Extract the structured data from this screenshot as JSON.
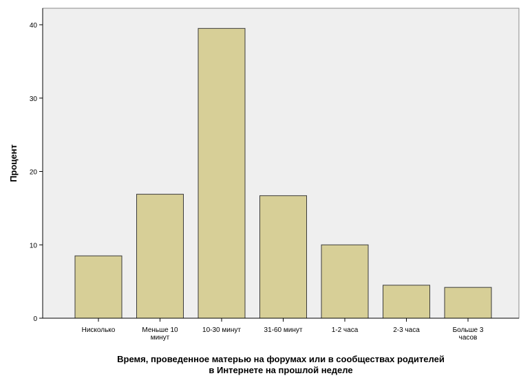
{
  "chart_data": {
    "type": "bar",
    "categories": [
      [
        "Нисколько"
      ],
      [
        "Меньше 10",
        "минут"
      ],
      [
        "10-30 минут"
      ],
      [
        "31-60 минут"
      ],
      [
        "1-2 часа"
      ],
      [
        "2-3 часа"
      ],
      [
        "Больше 3",
        "часов"
      ]
    ],
    "values": [
      8.5,
      16.9,
      39.5,
      16.7,
      10.0,
      4.5,
      4.2
    ],
    "ylabel": "Процент",
    "xlabel_lines": [
      "Время, проведенное матерью на форумах или в сообществах родителей",
      "в Интернете на прошлой неделе"
    ],
    "ylim": [
      0,
      44
    ],
    "yticks": [
      0,
      10,
      20,
      30,
      40
    ],
    "grid": false,
    "colors": {
      "plot_background": "#efefef",
      "bar_fill": "#d7cf97",
      "bar_stroke": "#3a3a3a",
      "axis": "#000000"
    }
  }
}
